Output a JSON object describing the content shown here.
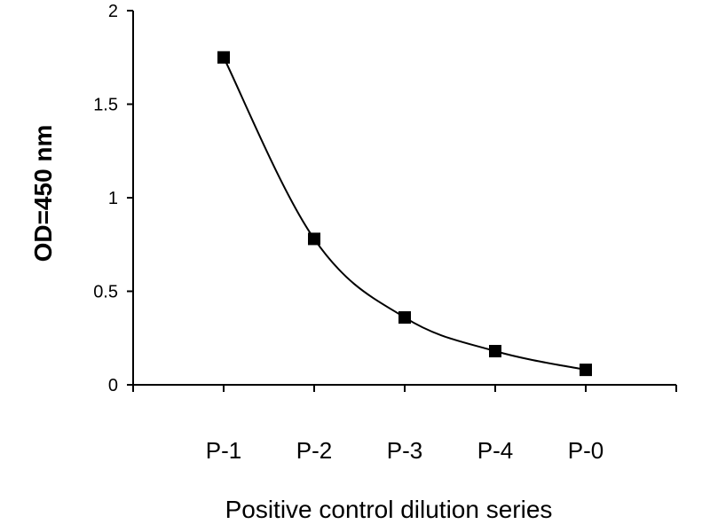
{
  "chart_data": {
    "type": "line",
    "categories": [
      "P-1",
      "P-2",
      "P-3",
      "P-4",
      "P-0"
    ],
    "values": [
      1.75,
      0.78,
      0.36,
      0.18,
      0.08
    ],
    "title": "",
    "xlabel": "Positive control dilution series",
    "ylabel": "OD=450 nm",
    "ylim": [
      0,
      2
    ],
    "yticks": [
      "0",
      "0.5",
      "1",
      "1.5",
      "2"
    ],
    "grid": false,
    "marker": "square",
    "line_style": "smooth",
    "colors": {
      "line": "#000000",
      "marker": "#000000",
      "axis": "#000000"
    }
  }
}
